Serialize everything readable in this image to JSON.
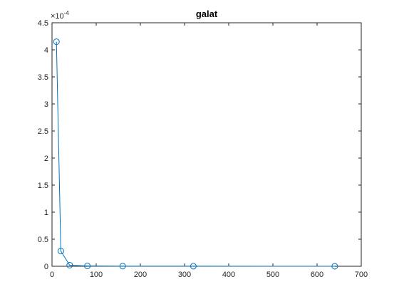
{
  "chart_data": {
    "type": "line",
    "title": "galat",
    "xlabel": "",
    "ylabel": "",
    "xlim": [
      0,
      700
    ],
    "ylim": [
      0,
      4.5
    ],
    "y_exponent_base": "×10",
    "y_exponent_power": "-4",
    "x_ticks": [
      0,
      100,
      200,
      300,
      400,
      500,
      600,
      700
    ],
    "x_tick_labels": [
      "0",
      "100",
      "200",
      "300",
      "400",
      "500",
      "600",
      "700"
    ],
    "y_ticks": [
      0,
      0.5,
      1,
      1.5,
      2,
      2.5,
      3,
      3.5,
      4,
      4.5
    ],
    "y_tick_labels": [
      "0",
      "0.5",
      "1",
      "1.5",
      "2",
      "2.5",
      "3",
      "3.5",
      "4",
      "4.5"
    ],
    "grid": false,
    "marker": "circle",
    "series": [
      {
        "x": [
          10,
          20,
          40,
          80,
          160,
          320,
          640
        ],
        "y": [
          4.15,
          0.28,
          0.02,
          0.005,
          0.002,
          0.001,
          0.0005
        ]
      }
    ],
    "colors": {
      "series": "#0072BD",
      "axes": "#262626",
      "background": "#ffffff"
    }
  }
}
